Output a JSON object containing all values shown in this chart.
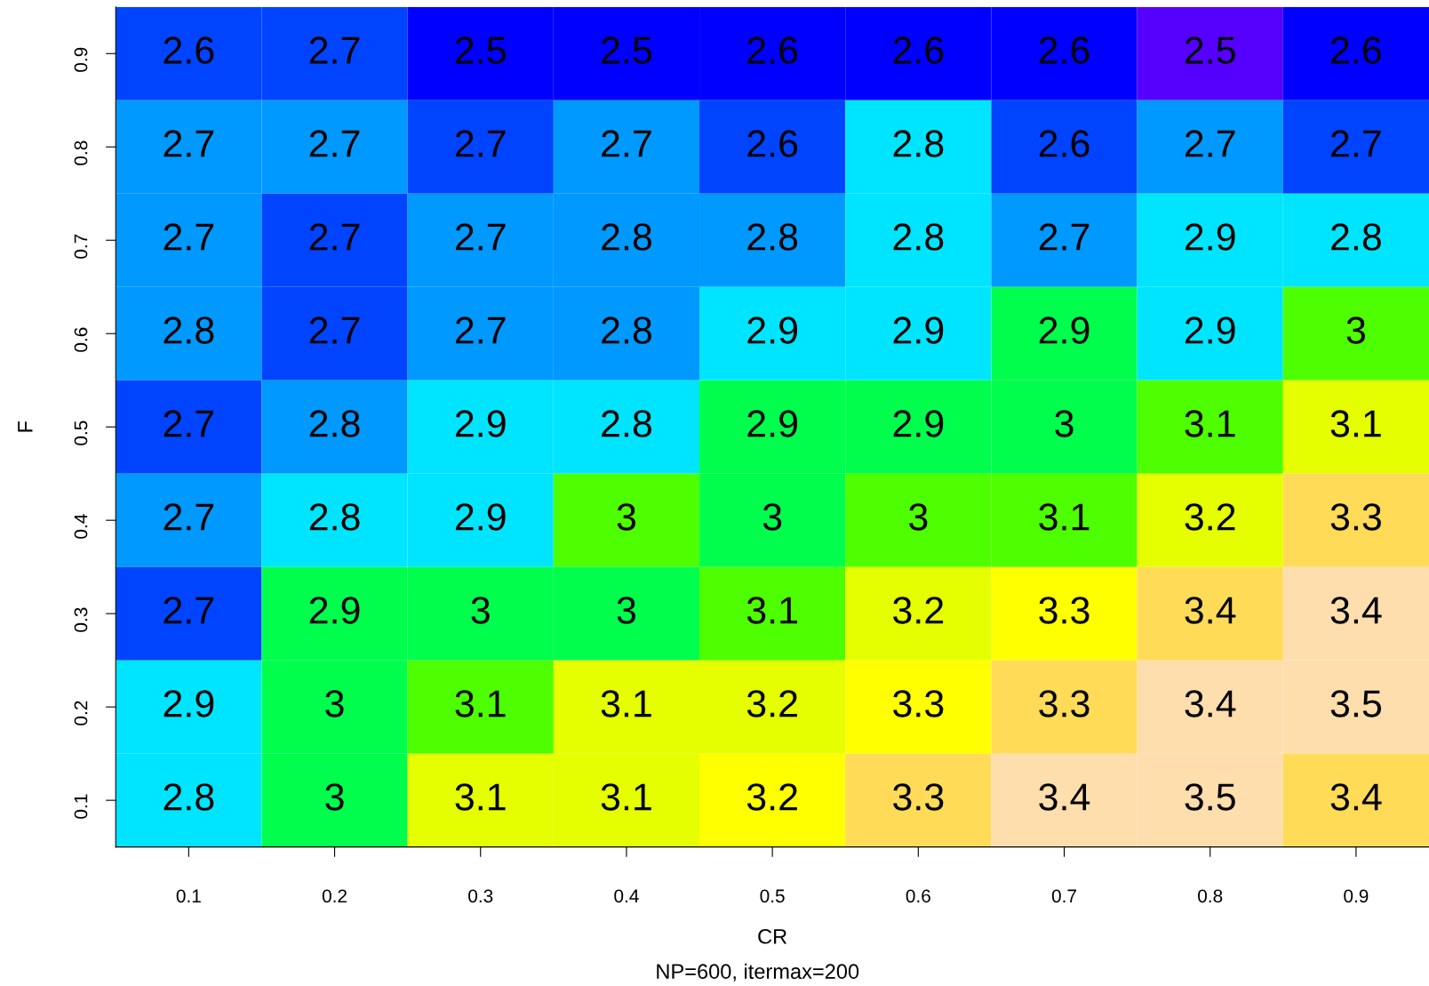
{
  "chart_data": {
    "type": "heatmap",
    "xlabel": "CR",
    "ylabel": "F",
    "subtitle": "NP=600, itermax=200",
    "categories": [
      "0.1",
      "0.2",
      "0.3",
      "0.4",
      "0.5",
      "0.6",
      "0.7",
      "0.8",
      "0.9"
    ],
    "y_categories": [
      "0.9",
      "0.8",
      "0.7",
      "0.6",
      "0.5",
      "0.4",
      "0.3",
      "0.2",
      "0.1"
    ],
    "cells": [
      [
        2.6,
        2.7,
        2.5,
        2.5,
        2.6,
        2.6,
        2.6,
        2.5,
        2.6
      ],
      [
        2.7,
        2.7,
        2.7,
        2.7,
        2.6,
        2.8,
        2.6,
        2.7,
        2.7
      ],
      [
        2.7,
        2.7,
        2.7,
        2.8,
        2.8,
        2.8,
        2.7,
        2.9,
        2.8
      ],
      [
        2.8,
        2.7,
        2.7,
        2.8,
        2.9,
        2.9,
        2.9,
        2.9,
        3
      ],
      [
        2.7,
        2.8,
        2.9,
        2.8,
        2.9,
        2.9,
        3,
        3.1,
        3.1
      ],
      [
        2.7,
        2.8,
        2.9,
        3,
        3,
        3,
        3.1,
        3.2,
        3.3
      ],
      [
        2.7,
        2.9,
        3,
        3,
        3.1,
        3.2,
        3.3,
        3.4,
        3.4
      ],
      [
        2.9,
        3,
        3.1,
        3.1,
        3.2,
        3.3,
        3.3,
        3.4,
        3.5
      ],
      [
        2.8,
        3,
        3.1,
        3.1,
        3.2,
        3.3,
        3.4,
        3.5,
        3.4
      ]
    ],
    "colors": [
      [
        "#0044ff",
        "#0044ff",
        "#0000ff",
        "#0000ff",
        "#0000ff",
        "#0000ff",
        "#0000ff",
        "#5500ff",
        "#0000ff"
      ],
      [
        "#0099ff",
        "#0099ff",
        "#0044ff",
        "#0099ff",
        "#0044ff",
        "#00e5ff",
        "#0044ff",
        "#0099ff",
        "#0044ff"
      ],
      [
        "#0099ff",
        "#0044ff",
        "#0099ff",
        "#0099ff",
        "#0099ff",
        "#00e5ff",
        "#0099ff",
        "#00e5ff",
        "#00e5ff"
      ],
      [
        "#0099ff",
        "#0044ff",
        "#0099ff",
        "#0099ff",
        "#00e5ff",
        "#00e5ff",
        "#00ff4d",
        "#00e5ff",
        "#4dff00"
      ],
      [
        "#0044ff",
        "#0099ff",
        "#00e5ff",
        "#00e5ff",
        "#00ff4d",
        "#00ff4d",
        "#00ff4d",
        "#4dff00",
        "#e5ff00"
      ],
      [
        "#0099ff",
        "#00e5ff",
        "#00e5ff",
        "#4dff00",
        "#00ff4d",
        "#4dff00",
        "#4dff00",
        "#e5ff00",
        "#ffdb58"
      ],
      [
        "#0044ff",
        "#00ff4d",
        "#00ff4d",
        "#00ff4d",
        "#4dff00",
        "#e5ff00",
        "#ffff00",
        "#ffdb58",
        "#ffdead"
      ],
      [
        "#00e5ff",
        "#00ff4d",
        "#4dff00",
        "#e5ff00",
        "#e5ff00",
        "#ffff00",
        "#ffdb58",
        "#ffdead",
        "#ffdead"
      ],
      [
        "#00e5ff",
        "#00ff4d",
        "#e5ff00",
        "#e5ff00",
        "#ffff00",
        "#ffdb58",
        "#ffdead",
        "#ffdead",
        "#ffdb58"
      ]
    ],
    "data_labels": true,
    "grid": false
  }
}
